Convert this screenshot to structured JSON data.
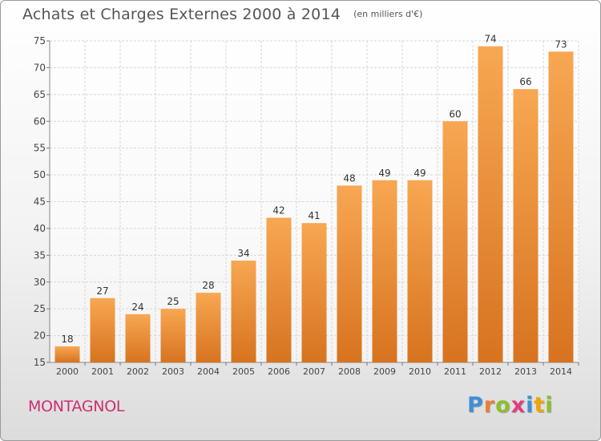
{
  "title": "Achats et Charges Externes 2000 à 2014",
  "unit": "(en milliers d'€)",
  "location": "MONTAGNOL",
  "logo": {
    "text": "Proxiti",
    "letter_colors": [
      "#3f8fd8",
      "#e8803a",
      "#8bbf2f",
      "#e23d7c",
      "#3f8fd8",
      "#f0a500",
      "#8bbf2f"
    ]
  },
  "colors": {
    "bar_top": "#f8a752",
    "bar_bottom": "#d7731f",
    "grid": "#d6d6d6",
    "axis_text": "#444444"
  },
  "chart_data": {
    "type": "bar",
    "title": "Achats et Charges Externes 2000 à 2014",
    "xlabel": "",
    "ylabel": "",
    "categories": [
      "2000",
      "2001",
      "2002",
      "2003",
      "2004",
      "2005",
      "2006",
      "2007",
      "2008",
      "2009",
      "2010",
      "2011",
      "2012",
      "2013",
      "2014"
    ],
    "values": [
      18,
      27,
      24,
      25,
      28,
      34,
      42,
      41,
      48,
      49,
      49,
      60,
      74,
      66,
      73
    ],
    "ylim": [
      15,
      75
    ],
    "yticks": [
      15,
      20,
      25,
      30,
      35,
      40,
      45,
      50,
      55,
      60,
      65,
      70,
      75
    ],
    "grid": true,
    "data_labels": true
  }
}
